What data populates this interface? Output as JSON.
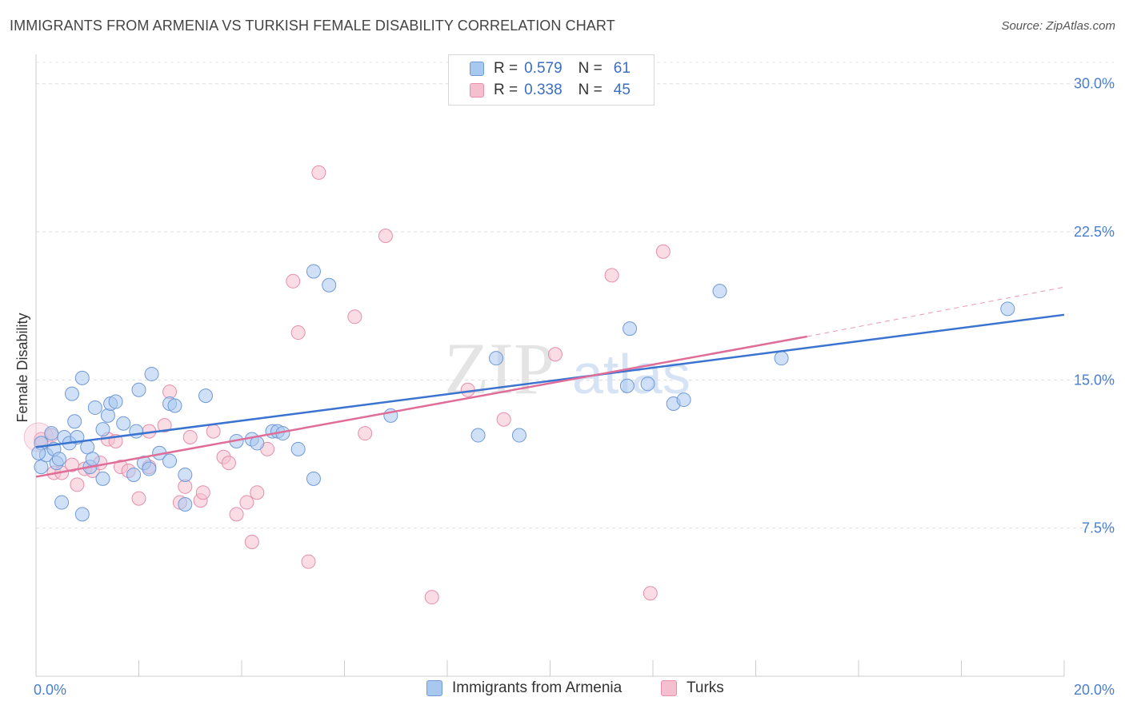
{
  "title": "IMMIGRANTS FROM ARMENIA VS TURKISH FEMALE DISABILITY CORRELATION CHART",
  "source": "Source: ZipAtlas.com",
  "watermark": {
    "zip": "ZIP",
    "atlas": "atlas"
  },
  "legend": {
    "series1": {
      "r_label": "R =",
      "r_value": "0.579",
      "n_label": "N =",
      "n_value": "61"
    },
    "series2": {
      "r_label": "R =",
      "r_value": "0.338",
      "n_label": "N =",
      "n_value": "45"
    }
  },
  "colors": {
    "blue_fill": "#a9c8f0",
    "blue_stroke": "#6f9ad8",
    "blue_line": "#3a74d0",
    "pink_fill": "#f6bfd0",
    "pink_stroke": "#e58fac",
    "pink_line": "#e06c98",
    "tick_text": "#4a7fcf"
  },
  "chart_data": {
    "type": "scatter",
    "title": "IMMIGRANTS FROM ARMENIA VS TURKISH FEMALE DISABILITY CORRELATION CHART",
    "xlabel": "",
    "ylabel": "Female Disability",
    "xlim": [
      0,
      20
    ],
    "ylim": [
      0,
      31
    ],
    "x_tick_labels": [
      "0.0%",
      "20.0%"
    ],
    "y_ticks": [
      7.5,
      15.0,
      22.5,
      30.0
    ],
    "y_tick_labels": [
      "7.5%",
      "15.0%",
      "22.5%",
      "30.0%"
    ],
    "series": [
      {
        "name": "Immigrants from Armenia",
        "r": 0.579,
        "n": 61,
        "trend": {
          "x0": 0,
          "y0": 11.6,
          "x1": 20,
          "y1": 18.3
        },
        "points": [
          [
            0.1,
            11.8
          ],
          [
            0.1,
            10.6
          ],
          [
            0.2,
            11.2
          ],
          [
            0.3,
            12.3
          ],
          [
            0.35,
            11.5
          ],
          [
            0.4,
            10.8
          ],
          [
            0.45,
            11.0
          ],
          [
            0.5,
            8.8
          ],
          [
            0.55,
            12.1
          ],
          [
            0.65,
            11.8
          ],
          [
            0.7,
            14.3
          ],
          [
            0.75,
            12.9
          ],
          [
            0.8,
            12.1
          ],
          [
            0.9,
            15.1
          ],
          [
            0.9,
            8.2
          ],
          [
            1.0,
            11.6
          ],
          [
            1.05,
            10.6
          ],
          [
            1.1,
            11.0
          ],
          [
            1.15,
            13.6
          ],
          [
            1.3,
            12.5
          ],
          [
            1.3,
            10.0
          ],
          [
            1.4,
            13.2
          ],
          [
            1.45,
            13.8
          ],
          [
            1.55,
            13.9
          ],
          [
            1.7,
            12.8
          ],
          [
            1.9,
            10.2
          ],
          [
            1.95,
            12.4
          ],
          [
            2.0,
            14.5
          ],
          [
            2.1,
            10.8
          ],
          [
            2.2,
            10.5
          ],
          [
            2.25,
            15.3
          ],
          [
            2.4,
            11.3
          ],
          [
            2.6,
            10.9
          ],
          [
            2.6,
            13.8
          ],
          [
            2.7,
            13.7
          ],
          [
            2.9,
            8.7
          ],
          [
            2.9,
            10.2
          ],
          [
            3.3,
            14.2
          ],
          [
            3.9,
            11.9
          ],
          [
            4.2,
            12.0
          ],
          [
            4.3,
            11.8
          ],
          [
            4.6,
            12.4
          ],
          [
            4.7,
            12.4
          ],
          [
            4.8,
            12.3
          ],
          [
            5.1,
            11.5
          ],
          [
            5.4,
            10.0
          ],
          [
            5.4,
            20.5
          ],
          [
            5.7,
            19.8
          ],
          [
            6.9,
            13.2
          ],
          [
            8.6,
            12.2
          ],
          [
            8.95,
            16.1
          ],
          [
            9.4,
            12.2
          ],
          [
            11.5,
            14.7
          ],
          [
            11.55,
            17.6
          ],
          [
            11.9,
            14.8
          ],
          [
            12.4,
            13.8
          ],
          [
            12.6,
            14.0
          ],
          [
            13.3,
            19.5
          ],
          [
            14.5,
            16.1
          ],
          [
            18.9,
            18.6
          ],
          [
            0.05,
            11.3
          ]
        ]
      },
      {
        "name": "Turks",
        "r": 0.338,
        "n": 45,
        "trend": {
          "x0": 0,
          "y0": 10.1,
          "x1": 15.0,
          "y1": 17.2
        },
        "trend_dashed_to": {
          "x": 20,
          "y": 19.7
        },
        "points": [
          [
            0.1,
            12.0
          ],
          [
            0.3,
            12.2
          ],
          [
            0.35,
            10.3
          ],
          [
            0.5,
            10.3
          ],
          [
            0.7,
            10.7
          ],
          [
            0.8,
            9.7
          ],
          [
            0.95,
            10.5
          ],
          [
            1.1,
            10.4
          ],
          [
            1.25,
            10.8
          ],
          [
            1.4,
            12.0
          ],
          [
            1.55,
            11.9
          ],
          [
            1.65,
            10.6
          ],
          [
            1.8,
            10.4
          ],
          [
            2.0,
            9.0
          ],
          [
            2.2,
            10.6
          ],
          [
            2.2,
            12.4
          ],
          [
            2.5,
            12.7
          ],
          [
            2.6,
            14.4
          ],
          [
            2.8,
            8.8
          ],
          [
            2.9,
            9.6
          ],
          [
            3.0,
            12.1
          ],
          [
            3.2,
            8.9
          ],
          [
            3.25,
            9.3
          ],
          [
            3.45,
            12.4
          ],
          [
            3.65,
            11.1
          ],
          [
            3.75,
            10.8
          ],
          [
            3.9,
            8.2
          ],
          [
            4.1,
            8.8
          ],
          [
            4.2,
            6.8
          ],
          [
            4.3,
            9.3
          ],
          [
            4.5,
            11.5
          ],
          [
            5.0,
            20.0
          ],
          [
            5.1,
            17.4
          ],
          [
            5.3,
            5.8
          ],
          [
            5.5,
            25.5
          ],
          [
            6.2,
            18.2
          ],
          [
            6.4,
            12.3
          ],
          [
            6.8,
            22.3
          ],
          [
            7.7,
            4.0
          ],
          [
            8.4,
            14.5
          ],
          [
            9.1,
            13.0
          ],
          [
            10.1,
            16.3
          ],
          [
            11.2,
            20.3
          ],
          [
            11.95,
            4.2
          ],
          [
            12.2,
            21.5
          ]
        ]
      }
    ],
    "legend_position": "top-center"
  },
  "bottom_legend": [
    "Immigrants from Armenia",
    "Turks"
  ]
}
